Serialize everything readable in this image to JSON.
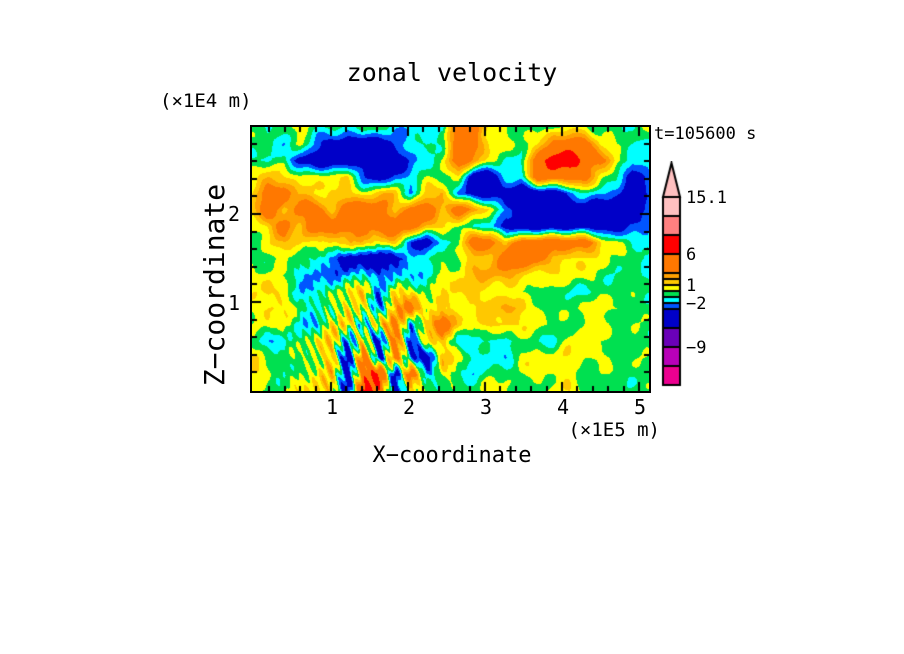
{
  "title": "zonal velocity",
  "time_label": "t=105600 s",
  "axes": {
    "x": {
      "label": "X−coordinate",
      "unit": "(×1E5 m)",
      "tick_labels": [
        "1",
        "2",
        "3",
        "4",
        "5"
      ],
      "major_values": [
        1,
        2,
        3,
        4,
        5
      ],
      "minor_step": 0.2,
      "range": [
        0,
        5.16
      ]
    },
    "y": {
      "label": "Z−coordinate",
      "unit": "(×1E4 m)",
      "tick_labels": [
        "1",
        "2"
      ],
      "major_values": [
        1,
        2
      ],
      "minor_step": 0.2,
      "range": [
        0,
        3.0
      ]
    }
  },
  "colorbar": {
    "tick_labels": [
      "15.1",
      "6",
      "1",
      "−2",
      "−9"
    ],
    "tick_values": [
      15.1,
      6,
      1,
      -2,
      -9
    ],
    "max_value": 15.1
  },
  "chart_data": {
    "type": "heatmap",
    "title": "zonal velocity",
    "xlabel": "X−coordinate (×1E5 m)",
    "ylabel": "Z−coordinate (×1E4 m)",
    "time": "t=105600 s",
    "x_range_1e5_m": [
      0,
      5.16
    ],
    "z_range_1e4_m": [
      0,
      3.0
    ],
    "levels": [
      -15,
      -12,
      -9,
      -6,
      -3,
      -2,
      -1,
      0,
      1,
      2,
      3,
      6,
      9,
      12,
      15.1
    ],
    "colors": [
      "#EC0090",
      "#B800B8",
      "#6A00B8",
      "#0000C8",
      "#0055FF",
      "#00FFFF",
      "#00E050",
      "#FFFF00",
      "#FFC800",
      "#FFA000",
      "#FF7800",
      "#FF0000",
      "#FF8080",
      "#FFC0C0"
    ],
    "grid_note": "approximate zonal velocity (m/s), 26 columns x 17 rows, row 0 = top (z = 3 x 1E4 m)",
    "grid": [
      [
        -0.5,
        -1.5,
        -0.5,
        0.5,
        -0.5,
        -0.5,
        -1.5,
        -0.5,
        -0.5,
        -1.5,
        -1.5,
        -1.5,
        -1.5,
        4.5,
        4.5,
        0.5,
        0.5,
        -0.5,
        -0.5,
        -0.5,
        0.5,
        0.5,
        -0.5,
        -0.5,
        -1.5,
        0.5
      ],
      [
        -0.5,
        -0.5,
        -1.5,
        0.5,
        -2.5,
        -4.5,
        -4.5,
        -4.5,
        -4.5,
        -2.5,
        -1.5,
        -1.5,
        -0.5,
        4.5,
        4.5,
        0.5,
        0.5,
        -0.5,
        0.5,
        4.5,
        4.5,
        4.5,
        0.5,
        -0.5,
        -0.5,
        -1.5
      ],
      [
        -0.5,
        -1.5,
        -0.5,
        -4.5,
        -4.5,
        -4.5,
        -4.5,
        -4.5,
        -4.5,
        -4.5,
        -2.5,
        -1.5,
        0.5,
        4.5,
        2.5,
        0.5,
        -1.5,
        -0.5,
        4.5,
        7.5,
        7.5,
        4.5,
        4.5,
        0.5,
        -1.5,
        -1.5
      ],
      [
        0.5,
        1.5,
        1.5,
        0.5,
        0.5,
        0.5,
        0.5,
        -2.5,
        -4.5,
        -2.5,
        -1.5,
        -0.5,
        -0.5,
        0.5,
        -4.5,
        -4.5,
        -1.5,
        -1.5,
        4.5,
        4.5,
        4.5,
        4.5,
        0.5,
        -1.5,
        -4.5,
        -2.5
      ],
      [
        1.5,
        4.5,
        4.5,
        1.5,
        0.5,
        1.5,
        1.5,
        0.5,
        1.5,
        1.5,
        -2.5,
        1.5,
        2.5,
        -2.5,
        -4.5,
        -4.5,
        -4.5,
        -4.5,
        -4.5,
        -4.5,
        -2.5,
        -1.5,
        -1.5,
        -2.5,
        -4.5,
        -2.5
      ],
      [
        1.5,
        4.5,
        1.5,
        4.5,
        4.5,
        1.5,
        4.5,
        4.5,
        4.5,
        1.5,
        4.5,
        4.5,
        1.5,
        4.5,
        2.5,
        1.5,
        -2.5,
        -4.5,
        -4.5,
        -4.5,
        -4.5,
        -4.5,
        -4.5,
        -4.5,
        -4.5,
        -2.5
      ],
      [
        0.5,
        1.5,
        4.5,
        1.5,
        4.5,
        4.5,
        4.5,
        4.5,
        4.5,
        4.5,
        4.5,
        1.5,
        1.5,
        0.5,
        -1.5,
        -1.5,
        -4.5,
        -4.5,
        -4.5,
        -4.5,
        -4.5,
        -4.5,
        -4.5,
        -4.5,
        -2.5,
        -1.5
      ],
      [
        -0.5,
        0.5,
        1.5,
        1.5,
        0.5,
        1.5,
        1.5,
        1.5,
        0.5,
        1.5,
        -2.5,
        -4.5,
        -1.5,
        -0.5,
        4.5,
        4.5,
        1.5,
        4.5,
        4.5,
        4.5,
        4.5,
        4.5,
        1.5,
        0.5,
        -1.5,
        -1.5
      ],
      [
        -0.5,
        -0.5,
        0.5,
        -0.5,
        -1.5,
        -2.5,
        -4.5,
        -4.5,
        -4.5,
        -4.5,
        -1.5,
        -1.5,
        -0.5,
        0.5,
        1.5,
        1.5,
        4.5,
        4.5,
        4.5,
        1.5,
        1.5,
        0.5,
        0.5,
        -0.5,
        -0.5,
        -0.5
      ],
      [
        0.5,
        0.5,
        -0.5,
        -1.5,
        -2.5,
        -2.5,
        -1.5,
        -1.5,
        -2.5,
        -2.5,
        -1.5,
        -1.5,
        0.5,
        0.5,
        1.5,
        2.5,
        2.5,
        1.5,
        0.5,
        0.5,
        0.5,
        0.5,
        -0.5,
        -0.5,
        -0.5,
        -1.5
      ],
      [
        0.5,
        1.5,
        0.5,
        -1.5,
        -1.5,
        -0.5,
        0.5,
        1.5,
        -2.5,
        1.5,
        0.5,
        -0.5,
        0.5,
        1.5,
        1.5,
        0.5,
        0.5,
        -0.5,
        -0.5,
        -0.5,
        -0.5,
        -1.5,
        -0.5,
        -0.5,
        -0.5,
        -0.5
      ],
      [
        0.5,
        1.5,
        0.5,
        -0.5,
        -1.5,
        -0.5,
        1.5,
        0.5,
        -2.5,
        1.5,
        4.5,
        0.5,
        1.5,
        0.5,
        0.5,
        1.5,
        2.5,
        1.5,
        0.5,
        -0.5,
        -0.5,
        0.5,
        0.5,
        0.5,
        -0.5,
        -0.5
      ],
      [
        -0.5,
        0.5,
        0.5,
        -1.5,
        -1.5,
        0.5,
        1.5,
        -2.5,
        1.5,
        4.5,
        -2.5,
        1.5,
        4.5,
        1.5,
        0.5,
        1.5,
        1.5,
        0.5,
        0.5,
        -0.5,
        -0.5,
        0.5,
        0.5,
        -0.5,
        -0.5,
        -0.5
      ],
      [
        -0.5,
        -1.5,
        -1.5,
        -0.5,
        0.5,
        1.5,
        -2.5,
        1.5,
        -4.5,
        4.5,
        -4.5,
        1.5,
        1.5,
        -1.5,
        -1.5,
        -1.5,
        -1.5,
        -0.5,
        -0.5,
        -1.5,
        0.5,
        0.5,
        -0.5,
        -0.5,
        -0.5,
        -0.5
      ],
      [
        1.5,
        -0.5,
        -0.5,
        -0.5,
        0.5,
        1.5,
        -4.5,
        4.5,
        -4.5,
        4.5,
        -2.5,
        -4.5,
        1.5,
        0.5,
        -1.5,
        -1.5,
        -1.5,
        0.5,
        0.5,
        0.5,
        0.5,
        0.5,
        0.5,
        -0.5,
        -0.5,
        -0.5
      ],
      [
        0.5,
        0.5,
        -0.5,
        -0.5,
        0.5,
        1.5,
        -4.5,
        4.5,
        7.5,
        -4.5,
        4.5,
        -2.5,
        0.5,
        -0.5,
        -1.5,
        -0.5,
        -0.5,
        -0.5,
        0.5,
        0.5,
        0.5,
        -0.5,
        -0.5,
        -0.5,
        -0.5,
        -0.5
      ],
      [
        0.5,
        -0.5,
        -0.5,
        0.5,
        1.5,
        1.5,
        -4.5,
        7.5,
        4.5,
        -4.5,
        0.5,
        0.5,
        -0.5,
        -0.5,
        -0.5,
        0.5,
        0.5,
        -0.5,
        -0.5,
        0.5,
        0.5,
        -0.5,
        -0.5,
        -0.5,
        -0.5,
        -0.5
      ]
    ]
  }
}
